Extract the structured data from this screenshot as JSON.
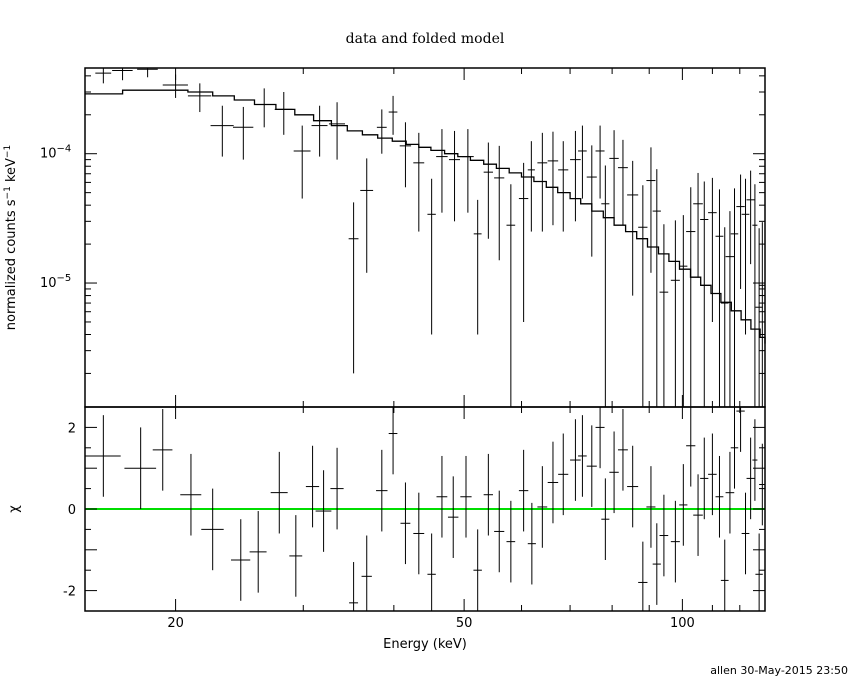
{
  "title": "data and folded model",
  "stamp": "allen 30-May-2015 23:50",
  "colors": {
    "axes": "#000000",
    "zero_line": "#00dd00"
  },
  "chart_data": [
    {
      "type": "scatter",
      "panel": "spectrum",
      "title": "data and folded model",
      "ylabel": "normalized counts s^-1 keV^-1",
      "yscale": "log",
      "xscale": "log",
      "xlim": [
        15,
        130
      ],
      "ylim": [
        1.1e-06,
        0.00046
      ],
      "yticks": [
        {
          "value": 0.0001,
          "mantissa": "10",
          "exp": "−4"
        },
        {
          "value": 1e-05,
          "mantissa": "10",
          "exp": "−5"
        }
      ],
      "data": [
        [
          15.9,
          0.00042,
          0.4,
          7e-05
        ],
        [
          16.9,
          0.00044,
          0.55,
          7e-05
        ],
        [
          18.3,
          0.00045,
          0.6,
          6e-05
        ],
        [
          20.0,
          0.00034,
          0.8,
          7e-05
        ],
        [
          21.6,
          0.00028,
          0.8,
          7e-05
        ],
        [
          23.2,
          0.000165,
          0.85,
          7e-05
        ],
        [
          24.8,
          0.00016,
          0.8,
          7e-05
        ],
        [
          26.5,
          0.00024,
          0.75,
          8e-05
        ],
        [
          28.2,
          0.00022,
          0.8,
          8e-05
        ],
        [
          29.9,
          0.000105,
          0.8,
          6e-05
        ],
        [
          31.6,
          0.000165,
          0.8,
          7e-05
        ],
        [
          33.4,
          0.00017,
          0.85,
          8e-05
        ],
        [
          35.2,
          2.2e-05,
          0.55,
          2e-05
        ],
        [
          36.7,
          5.2e-05,
          0.75,
          4e-05
        ],
        [
          38.5,
          0.00016,
          0.6,
          6e-05
        ],
        [
          39.9,
          0.00021,
          0.55,
          7e-05
        ],
        [
          41.5,
          0.000115,
          0.75,
          6e-05
        ],
        [
          43.3,
          8.5e-05,
          0.75,
          6e-05
        ],
        [
          45.1,
          3.4e-05,
          0.6,
          3e-05
        ],
        [
          46.6,
          9.5e-05,
          0.85,
          6e-05
        ],
        [
          48.5,
          9e-05,
          0.85,
          6e-05
        ],
        [
          50.6,
          9.5e-05,
          0.95,
          6e-05
        ],
        [
          52.2,
          2.4e-05,
          0.65,
          2e-05
        ],
        [
          54.0,
          7.2e-05,
          0.8,
          5e-05
        ],
        [
          55.9,
          6.5e-05,
          0.9,
          5e-05
        ],
        [
          58.0,
          2.8e-05,
          0.8,
          3e-05
        ],
        [
          60.4,
          4.5e-05,
          0.9,
          4e-05
        ],
        [
          61.9,
          7.5e-05,
          0.7,
          5e-05
        ],
        [
          64.1,
          8.5e-05,
          1.0,
          6e-05
        ],
        [
          66.3,
          8.8e-05,
          1.1,
          6e-05
        ],
        [
          68.5,
          7.5e-05,
          1.1,
          5e-05
        ],
        [
          71.2,
          9e-05,
          1.2,
          6e-05
        ],
        [
          72.8,
          0.000105,
          1.0,
          6e-05
        ],
        [
          75.0,
          6.6e-05,
          1.2,
          5e-05
        ],
        [
          77.0,
          0.000105,
          1.1,
          6e-05
        ],
        [
          78.3,
          4.1e-05,
          1.0,
          4e-05
        ],
        [
          80.5,
          9.2e-05,
          1.2,
          6e-05
        ],
        [
          82.8,
          7.8e-05,
          1.3,
          5e-05
        ],
        [
          85.4,
          4.8e-05,
          1.5,
          4e-05
        ],
        [
          88.2,
          2.7e-05,
          1.3,
          3e-05
        ],
        [
          90.5,
          6.2e-05,
          1.3,
          5e-05
        ],
        [
          92.2,
          3.6e-05,
          1.2,
          4e-05
        ],
        [
          94.3,
          8.5e-06,
          1.3,
          2e-05
        ],
        [
          97.8,
          1.05e-05,
          1.4,
          2e-05
        ],
        [
          100.3,
          1.35e-05,
          1.3,
          2e-05
        ],
        [
          102.7,
          2.5e-05,
          1.5,
          3e-05
        ],
        [
          105.1,
          4.1e-05,
          1.6,
          3e-05
        ],
        [
          107.2,
          3.1e-05,
          1.4,
          3e-05
        ],
        [
          110.0,
          3.5e-05,
          1.5,
          3e-05
        ],
        [
          112.5,
          2.3e-05,
          1.4,
          3e-05
        ],
        [
          114.4,
          7e-06,
          1.4,
          2e-05
        ],
        [
          116.3,
          1.6e-05,
          1.6,
          2e-05
        ],
        [
          118.0,
          2.4e-05,
          1.4,
          3e-05
        ],
        [
          120.3,
          3.9e-05,
          1.6,
          3e-05
        ],
        [
          122.2,
          3.4e-05,
          1.5,
          3e-05
        ],
        [
          124.2,
          4.4e-05,
          1.6,
          3e-05
        ],
        [
          125.9,
          2.8e-05,
          1.0,
          3e-05
        ],
        [
          127.6,
          6.5e-06,
          1.5,
          2e-05
        ],
        [
          128.9,
          9.6e-06,
          1.3,
          2e-05
        ]
      ],
      "model": [
        [
          15.0,
          0.00029
        ],
        [
          16.3,
          0.00029
        ],
        [
          16.9,
          0.00031
        ],
        [
          19.2,
          0.00031
        ],
        [
          20.8,
          0.0003
        ],
        [
          22.5,
          0.00028
        ],
        [
          24.1,
          0.00026
        ],
        [
          25.7,
          0.00024
        ],
        [
          27.5,
          0.00022
        ],
        [
          29.2,
          0.0002
        ],
        [
          31.0,
          0.00018
        ],
        [
          32.8,
          0.000165
        ],
        [
          34.5,
          0.00015
        ],
        [
          36.2,
          0.00014
        ],
        [
          38.0,
          0.000132
        ],
        [
          39.8,
          0.000125
        ],
        [
          41.6,
          0.000118
        ],
        [
          43.3,
          0.000112
        ],
        [
          45.0,
          0.000106
        ],
        [
          47.0,
          0.0001
        ],
        [
          49.0,
          9.5e-05
        ],
        [
          51.0,
          8.9e-05
        ],
        [
          53.2,
          8.3e-05
        ],
        [
          55.4,
          7.7e-05
        ],
        [
          57.7,
          7.1e-05
        ],
        [
          60.0,
          6.6e-05
        ],
        [
          62.4,
          6.1e-05
        ],
        [
          64.9,
          5.5e-05
        ],
        [
          67.3,
          5e-05
        ],
        [
          70.0,
          4.5e-05
        ],
        [
          72.4,
          4.1e-05
        ],
        [
          75.0,
          3.6e-05
        ],
        [
          77.8,
          3.2e-05
        ],
        [
          80.5,
          2.8e-05
        ],
        [
          83.5,
          2.5e-05
        ],
        [
          86.5,
          2.2e-05
        ],
        [
          89.5,
          1.9e-05
        ],
        [
          92.7,
          1.68e-05
        ],
        [
          95.8,
          1.47e-05
        ],
        [
          99.1,
          1.28e-05
        ],
        [
          102.6,
          1.11e-05
        ],
        [
          106.0,
          9.6e-06
        ],
        [
          109.5,
          8.3e-06
        ],
        [
          113.0,
          7.1e-06
        ],
        [
          116.8,
          6.1e-06
        ],
        [
          120.5,
          5.2e-06
        ],
        [
          124.3,
          4.4e-06
        ],
        [
          128.0,
          3.8e-06
        ],
        [
          130.0,
          3.4e-06
        ]
      ]
    },
    {
      "type": "scatter",
      "panel": "residuals",
      "xlabel": "Energy (keV)",
      "ylabel": "χ",
      "xscale": "log",
      "xlim": [
        15,
        130
      ],
      "ylim": [
        -2.5,
        2.5
      ],
      "yticks": [
        -2,
        0,
        2
      ],
      "xticks": [
        20,
        50,
        100
      ],
      "zero_line": 0,
      "data": [
        [
          15.9,
          1.3,
          0.9,
          1.0
        ],
        [
          17.9,
          1.0,
          0.9,
          1.0
        ],
        [
          19.2,
          1.45,
          0.6,
          1.0
        ],
        [
          21.0,
          0.35,
          0.7,
          1.0
        ],
        [
          22.5,
          -0.5,
          0.8,
          1.0
        ],
        [
          24.6,
          -1.25,
          0.75,
          1.0
        ],
        [
          26.0,
          -1.05,
          0.7,
          1.0
        ],
        [
          27.8,
          0.4,
          0.75,
          1.0
        ],
        [
          29.3,
          -1.15,
          0.6,
          1.0
        ],
        [
          30.9,
          0.55,
          0.65,
          1.0
        ],
        [
          32.0,
          -0.05,
          0.8,
          1.0
        ],
        [
          33.4,
          0.5,
          0.7,
          1.0
        ],
        [
          35.2,
          -2.3,
          0.5,
          1.0
        ],
        [
          36.7,
          -1.65,
          0.6,
          1.0
        ],
        [
          38.5,
          0.45,
          0.7,
          1.0
        ],
        [
          39.9,
          1.85,
          0.55,
          1.0
        ],
        [
          41.5,
          -0.35,
          0.65,
          1.0
        ],
        [
          43.3,
          -0.6,
          0.75,
          1.0
        ],
        [
          45.1,
          -1.6,
          0.6,
          1.0
        ],
        [
          46.6,
          0.3,
          0.8,
          1.0
        ],
        [
          48.3,
          -0.2,
          0.8,
          1.0
        ],
        [
          50.3,
          0.3,
          0.9,
          1.0
        ],
        [
          52.2,
          -1.5,
          0.7,
          1.0
        ],
        [
          54.0,
          0.35,
          0.8,
          1.0
        ],
        [
          55.9,
          -0.55,
          0.9,
          1.0
        ],
        [
          58.0,
          -0.8,
          0.8,
          1.0
        ],
        [
          60.4,
          0.45,
          0.9,
          1.0
        ],
        [
          62.0,
          -0.85,
          0.8,
          1.0
        ],
        [
          64.1,
          0.05,
          1.0,
          1.0
        ],
        [
          66.3,
          0.65,
          1.1,
          1.0
        ],
        [
          68.5,
          0.85,
          1.1,
          1.0
        ],
        [
          71.2,
          1.2,
          1.2,
          1.0
        ],
        [
          72.8,
          1.3,
          1.0,
          1.0
        ],
        [
          75.0,
          1.05,
          1.2,
          1.0
        ],
        [
          77.0,
          2.0,
          1.1,
          1.0
        ],
        [
          78.3,
          -0.25,
          1.0,
          1.0
        ],
        [
          80.5,
          0.9,
          1.2,
          1.0
        ],
        [
          82.8,
          1.45,
          1.3,
          1.0
        ],
        [
          85.4,
          0.55,
          1.5,
          1.0
        ],
        [
          88.2,
          -1.8,
          1.3,
          1.0
        ],
        [
          90.5,
          0.05,
          1.3,
          1.0
        ],
        [
          92.2,
          -1.35,
          1.2,
          1.0
        ],
        [
          94.3,
          -0.65,
          1.3,
          1.0
        ],
        [
          97.8,
          -0.8,
          1.4,
          1.0
        ],
        [
          100.3,
          0.1,
          1.3,
          1.0
        ],
        [
          102.7,
          1.55,
          1.5,
          1.0
        ],
        [
          105.1,
          -0.15,
          1.6,
          1.0
        ],
        [
          107.2,
          0.75,
          1.4,
          1.0
        ],
        [
          110.0,
          0.85,
          1.5,
          1.0
        ],
        [
          112.5,
          0.3,
          1.4,
          1.0
        ],
        [
          114.4,
          -1.75,
          1.4,
          1.0
        ],
        [
          116.3,
          0.4,
          1.6,
          1.0
        ],
        [
          118.0,
          1.5,
          1.4,
          1.0
        ],
        [
          120.3,
          2.4,
          1.6,
          1.0
        ],
        [
          122.2,
          -0.6,
          1.5,
          1.0
        ],
        [
          124.2,
          0.75,
          1.6,
          1.0
        ],
        [
          125.9,
          1.2,
          1.0,
          1.0
        ],
        [
          127.6,
          -1.6,
          1.5,
          1.0
        ],
        [
          128.9,
          0.6,
          1.3,
          1.0
        ]
      ]
    }
  ]
}
